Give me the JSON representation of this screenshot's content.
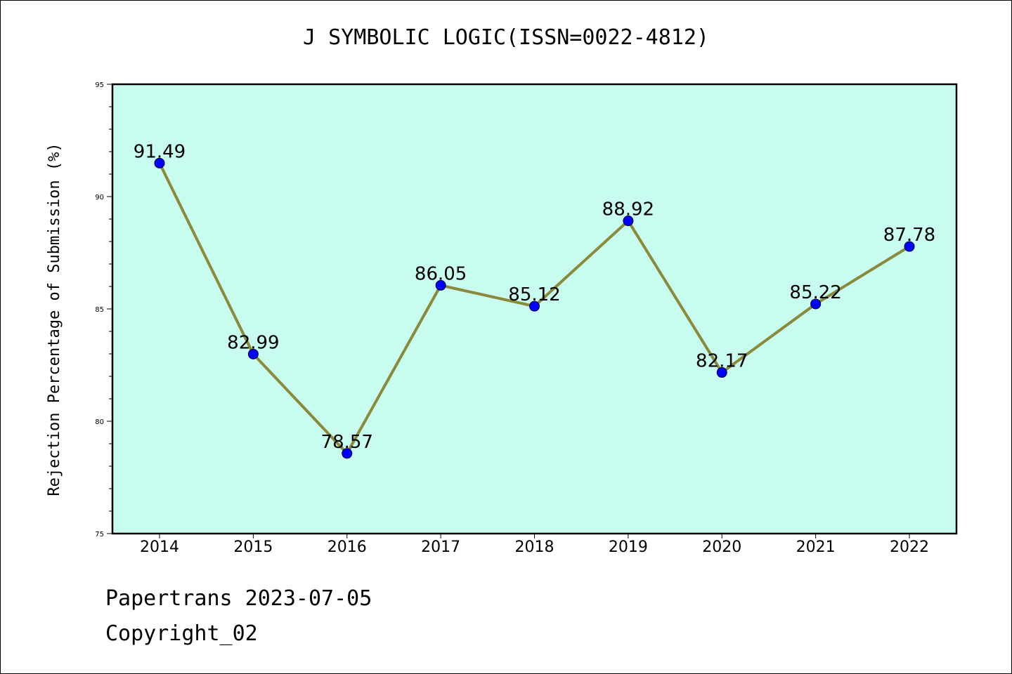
{
  "chart_data": {
    "type": "line",
    "title": "J SYMBOLIC LOGIC(ISSN=0022-4812)",
    "xlabel": "",
    "ylabel": "Rejection Percentage of Submission (%)",
    "categories": [
      "2014",
      "2015",
      "2016",
      "2017",
      "2018",
      "2019",
      "2020",
      "2021",
      "2022"
    ],
    "series": [
      {
        "values": [
          91.49,
          82.99,
          78.57,
          86.05,
          85.12,
          88.92,
          82.17,
          85.22,
          87.78
        ],
        "labels": [
          "91.49",
          "82.99",
          "78.57",
          "86.05",
          "85.12",
          "88.92",
          "82.17",
          "85.22",
          "87.78"
        ]
      }
    ],
    "ylim": [
      75,
      95
    ],
    "yticks": [
      "75",
      "80",
      "85",
      "90",
      "95"
    ],
    "grid": false,
    "colors": {
      "plot_background": "#c8fcee",
      "line": "#8a8a3a",
      "marker": "#0000ff"
    }
  },
  "footer": {
    "line1": "Papertrans 2023-07-05",
    "line2": "Copyright_02"
  }
}
